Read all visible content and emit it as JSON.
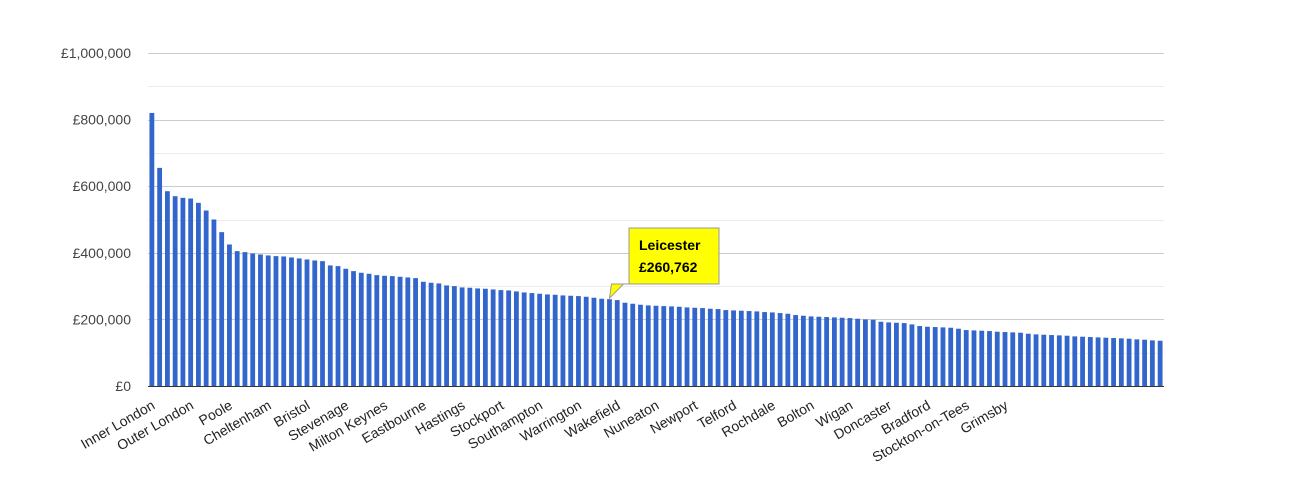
{
  "chart_data": {
    "type": "bar",
    "title": "",
    "xlabel": "",
    "ylabel": "",
    "ylim": [
      0,
      1000000
    ],
    "y_ticks": [
      "£0",
      "£200,000",
      "£400,000",
      "£600,000",
      "£800,000",
      "£1,000,000"
    ],
    "grid": true,
    "bar_color": "#3366cc",
    "x_labels": [
      "Inner London",
      "Outer London",
      "Poole",
      "Cheltenham",
      "Bristol",
      "Stevenage",
      "Milton Keynes",
      "Eastbourne",
      "Hastings",
      "Stockport",
      "Southampton",
      "Warrington",
      "Wakefield",
      "Nuneaton",
      "Newport",
      "Telford",
      "Rochdale",
      "Bolton",
      "Wigan",
      "Doncaster",
      "Bradford",
      "Stockton-on-Tees",
      "Grimsby"
    ],
    "label_every": 5,
    "values": [
      820000,
      655000,
      585000,
      570000,
      565000,
      563000,
      550000,
      527000,
      500000,
      462000,
      425000,
      405000,
      402000,
      398000,
      395000,
      392000,
      390000,
      389000,
      386000,
      383000,
      380000,
      377000,
      375000,
      362000,
      360000,
      352000,
      345000,
      340000,
      337000,
      333000,
      331000,
      330000,
      328000,
      326000,
      324000,
      313000,
      310000,
      308000,
      302000,
      300000,
      296000,
      295000,
      293000,
      292000,
      290000,
      288000,
      287000,
      284000,
      281000,
      279000,
      277000,
      275000,
      274000,
      272000,
      271000,
      270000,
      268000,
      265000,
      262000,
      260762,
      258000,
      250000,
      247000,
      244000,
      242000,
      241000,
      240000,
      239000,
      238000,
      236000,
      235000,
      234000,
      232000,
      231000,
      228000,
      227000,
      226000,
      225000,
      224000,
      222000,
      221000,
      219000,
      217000,
      213000,
      211000,
      209000,
      208000,
      207000,
      206000,
      205000,
      204000,
      202000,
      200000,
      199000,
      193000,
      191000,
      190000,
      189000,
      185000,
      180000,
      178000,
      177000,
      176000,
      175000,
      172000,
      168000,
      167000,
      166000,
      165000,
      163000,
      162000,
      161000,
      160000,
      157000,
      155000,
      154000,
      153000,
      152000,
      151000,
      149000,
      148000,
      147000,
      146000,
      145000,
      144000,
      143000,
      142000,
      140000,
      139000,
      137000,
      136000
    ],
    "highlight": {
      "index": 59,
      "label": "Leicester",
      "value_text": "£260,762",
      "color": "#ffff00"
    }
  }
}
